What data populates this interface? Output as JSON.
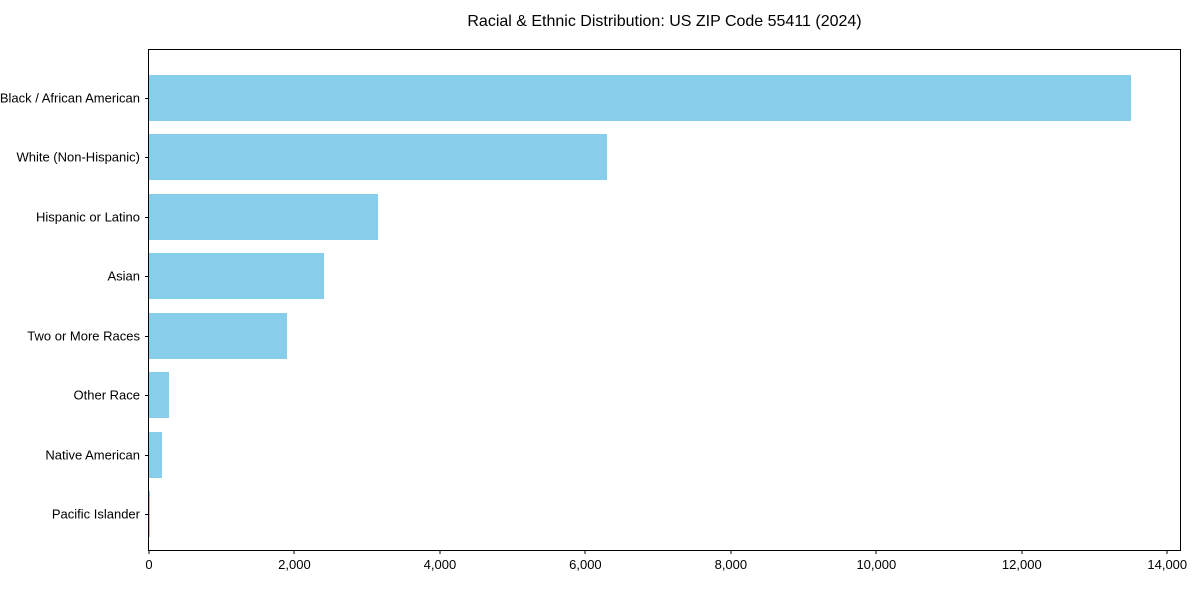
{
  "figure": {
    "background": "#FFFFFF"
  },
  "colors": {
    "bar": "#87CEEB",
    "axis": "#000000",
    "text": "#000000"
  },
  "chart_data": {
    "type": "bar",
    "orientation": "horizontal",
    "title": "Racial & Ethnic Distribution: US ZIP Code 55411 (2024)",
    "categories": [
      "Black / African American",
      "White (Non-Hispanic)",
      "Hispanic or Latino",
      "Asian",
      "Two or More Races",
      "Other Race",
      "Native American",
      "Pacific Islander"
    ],
    "values": [
      13500,
      6300,
      3150,
      2400,
      1900,
      280,
      180,
      15
    ],
    "xlabel": "",
    "ylabel": "",
    "xlim": [
      0,
      14175
    ],
    "x_ticks": [
      {
        "value": 0,
        "label": "0"
      },
      {
        "value": 2000,
        "label": "2,000"
      },
      {
        "value": 4000,
        "label": "4,000"
      },
      {
        "value": 6000,
        "label": "6,000"
      },
      {
        "value": 8000,
        "label": "8,000"
      },
      {
        "value": 10000,
        "label": "10,000"
      },
      {
        "value": 12000,
        "label": "12,000"
      },
      {
        "value": 14000,
        "label": "14,000"
      }
    ],
    "grid": false,
    "legend": null,
    "bar_color": "#87CEEB"
  }
}
